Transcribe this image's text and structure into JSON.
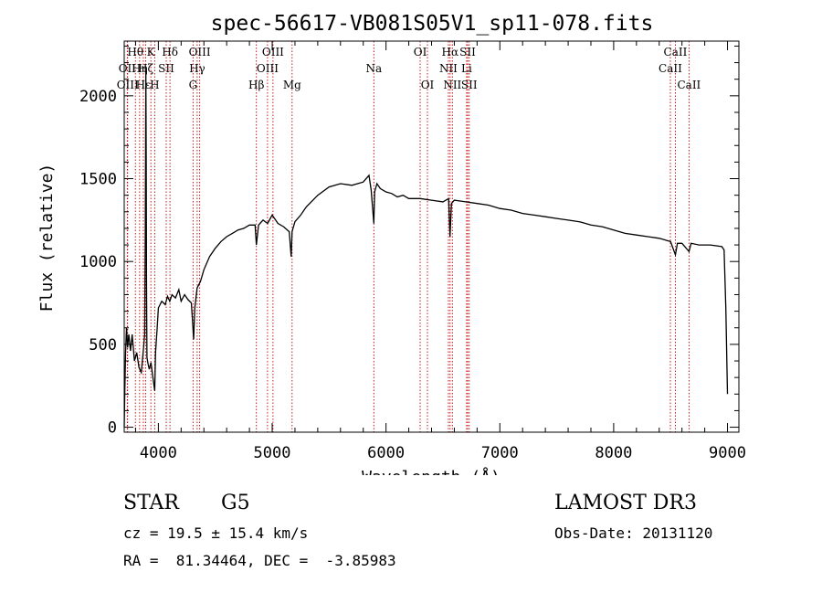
{
  "chart_data": {
    "type": "line",
    "title": "spec-56617-VB081S05V1_sp11-078.fits",
    "xlabel": "Wavelength (Å)",
    "ylabel": "Flux (relative)",
    "xlim": [
      3700,
      9100
    ],
    "ylim": [
      -30,
      2330
    ],
    "xticks": [
      4000,
      5000,
      6000,
      7000,
      8000,
      9000
    ],
    "yticks": [
      0,
      500,
      1000,
      1500,
      2000
    ],
    "series": [
      {
        "name": "spectrum",
        "x": [
          3700,
          3705,
          3712,
          3720,
          3730,
          3740,
          3755,
          3770,
          3790,
          3810,
          3830,
          3850,
          3870,
          3880,
          3885,
          3890,
          3893,
          3896,
          3900,
          3910,
          3920,
          3935,
          3950,
          3960,
          3968,
          3975,
          3990,
          4000,
          4030,
          4060,
          4080,
          4100,
          4120,
          4150,
          4180,
          4200,
          4230,
          4260,
          4290,
          4300,
          4310,
          4320,
          4340,
          4370,
          4400,
          4450,
          4500,
          4550,
          4600,
          4650,
          4700,
          4750,
          4800,
          4850,
          4861,
          4880,
          4920,
          4960,
          5000,
          5050,
          5100,
          5150,
          5167,
          5175,
          5200,
          5250,
          5300,
          5400,
          5500,
          5600,
          5700,
          5800,
          5850,
          5870,
          5893,
          5900,
          5920,
          5950,
          6000,
          6050,
          6100,
          6150,
          6200,
          6250,
          6300,
          6400,
          6500,
          6550,
          6562,
          6575,
          6600,
          6700,
          6800,
          6900,
          7000,
          7100,
          7200,
          7300,
          7400,
          7500,
          7600,
          7700,
          7800,
          7900,
          8000,
          8100,
          8200,
          8300,
          8400,
          8500,
          8542,
          8560,
          8600,
          8662,
          8680,
          8750,
          8850,
          8950,
          8970,
          8985,
          9000
        ],
        "values": [
          0,
          200,
          450,
          600,
          480,
          560,
          460,
          560,
          400,
          450,
          360,
          330,
          480,
          560,
          1200,
          2150,
          1600,
          900,
          420,
          380,
          350,
          390,
          310,
          260,
          220,
          450,
          600,
          720,
          760,
          740,
          790,
          760,
          800,
          780,
          830,
          760,
          800,
          770,
          750,
          640,
          530,
          720,
          840,
          880,
          950,
          1030,
          1080,
          1120,
          1150,
          1170,
          1190,
          1200,
          1220,
          1220,
          1100,
          1220,
          1250,
          1230,
          1280,
          1230,
          1210,
          1180,
          1030,
          1180,
          1240,
          1280,
          1330,
          1400,
          1450,
          1470,
          1460,
          1480,
          1520,
          1430,
          1230,
          1420,
          1470,
          1440,
          1420,
          1410,
          1390,
          1400,
          1380,
          1380,
          1380,
          1370,
          1360,
          1380,
          1150,
          1350,
          1370,
          1360,
          1350,
          1340,
          1320,
          1310,
          1290,
          1280,
          1270,
          1260,
          1250,
          1240,
          1220,
          1210,
          1190,
          1170,
          1160,
          1150,
          1140,
          1120,
          1040,
          1110,
          1110,
          1060,
          1110,
          1100,
          1100,
          1090,
          1070,
          720,
          200
        ]
      }
    ],
    "spectral_lines": [
      {
        "label": "Hθ",
        "x": 3798,
        "row": 0
      },
      {
        "label": "OII",
        "x": 3727,
        "row": 1
      },
      {
        "label": "OIII",
        "x": 3730,
        "row": 2
      },
      {
        "label": "Hη",
        "x": 3835,
        "row": 1
      },
      {
        "label": "Hε",
        "x": 3868,
        "row": 2
      },
      {
        "label": "K",
        "x": 3934,
        "row": 0
      },
      {
        "label": "Hζ",
        "x": 3889,
        "row": 1
      },
      {
        "label": "H",
        "x": 3968,
        "row": 2
      },
      {
        "label": "SII",
        "x": 4069,
        "row": 1
      },
      {
        "label": "Hδ",
        "x": 4102,
        "row": 0
      },
      {
        "label": "OIII",
        "x": 4363,
        "row": 0
      },
      {
        "label": "Hγ",
        "x": 4341,
        "row": 1
      },
      {
        "label": "G",
        "x": 4305,
        "row": 2
      },
      {
        "label": "Hβ",
        "x": 4861,
        "row": 2
      },
      {
        "label": "OIII",
        "x": 5007,
        "row": 0
      },
      {
        "label": "OIII",
        "x": 4959,
        "row": 1
      },
      {
        "label": "Mg",
        "x": 5175,
        "row": 2
      },
      {
        "label": "Na",
        "x": 5893,
        "row": 1
      },
      {
        "label": "OI",
        "x": 6300,
        "row": 0
      },
      {
        "label": "OI",
        "x": 6364,
        "row": 2
      },
      {
        "label": "Hα",
        "x": 6563,
        "row": 0
      },
      {
        "label": "SII",
        "x": 6717,
        "row": 0
      },
      {
        "label": "NII",
        "x": 6548,
        "row": 1
      },
      {
        "label": "Li",
        "x": 6708,
        "row": 1
      },
      {
        "label": "NII",
        "x": 6583,
        "row": 2
      },
      {
        "label": "SII",
        "x": 6731,
        "row": 2
      },
      {
        "label": "CaII",
        "x": 8542,
        "row": 0
      },
      {
        "label": "CaII",
        "x": 8498,
        "row": 1
      },
      {
        "label": "CaII",
        "x": 8662,
        "row": 2
      }
    ],
    "line_color": "#c00000",
    "spectrum_color": "#000000"
  },
  "info": {
    "object_type": "STAR",
    "subclass": "G5",
    "survey": "LAMOST DR3",
    "cz": "cz = 19.5 ± 15.4 km/s",
    "obs_date": "Obs-Date: 20131120",
    "coords": "RA =  81.34464, DEC =  -3.85983"
  }
}
